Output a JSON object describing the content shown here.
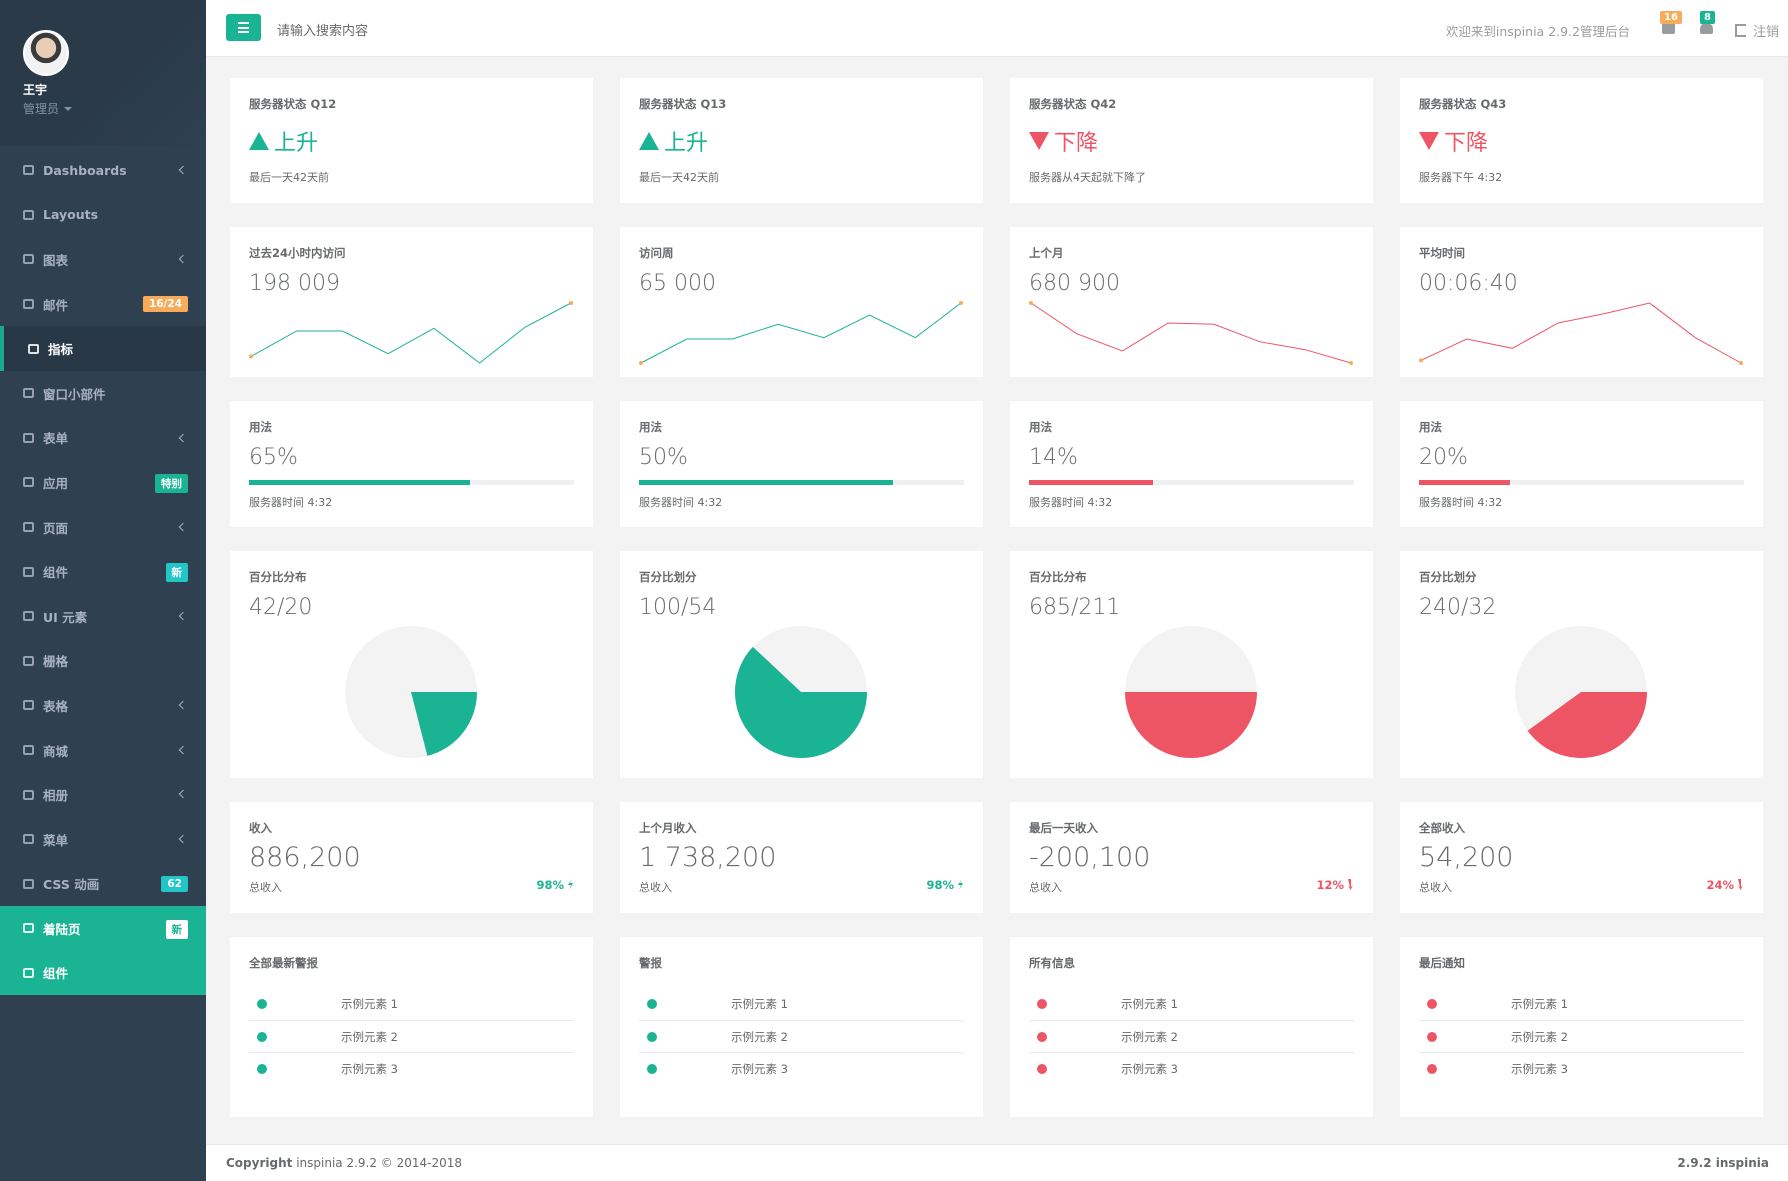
{
  "sidebar": {
    "user_name": "王宇",
    "role": "管理员",
    "menu": [
      {
        "label": "Dashboards",
        "arrow": true
      },
      {
        "label": "Layouts"
      },
      {
        "label": "图表",
        "arrow": true
      },
      {
        "label": "邮件",
        "badge": "16/24",
        "badge_color": "#f8ac59"
      },
      {
        "label": "指标",
        "state": "active"
      },
      {
        "label": "窗口小部件"
      },
      {
        "label": "表单",
        "arrow": true
      },
      {
        "label": "应用",
        "badge": "特别",
        "badge_color": "#1ab394"
      },
      {
        "label": "页面",
        "arrow": true
      },
      {
        "label": "组件",
        "badge": "新",
        "badge_color": "#23c6c8"
      },
      {
        "label": "UI 元素",
        "arrow": true
      },
      {
        "label": "栅格"
      },
      {
        "label": "表格",
        "arrow": true
      },
      {
        "label": "商城",
        "arrow": true
      },
      {
        "label": "相册",
        "arrow": true
      },
      {
        "label": "菜单",
        "arrow": true
      },
      {
        "label": "CSS 动画",
        "badge": "62",
        "badge_color": "#23c6c8"
      },
      {
        "label": "着陆页",
        "badge": "新",
        "badge_color": "#ffffff",
        "state": "highlight"
      },
      {
        "label": "组件",
        "state": "highlight"
      }
    ]
  },
  "topbar": {
    "search_placeholder": "请输入搜索内容",
    "welcome": "欢迎来到inspinia 2.9.2管理后台",
    "mail_count": 16,
    "alert_count": 8,
    "logout": "注销"
  },
  "status_cards": [
    {
      "title": "服务器状态 Q12",
      "trend": "上升",
      "direction": "up",
      "color": "#1ab394",
      "note": "最后一天42天前"
    },
    {
      "title": "服务器状态 Q13",
      "trend": "上升",
      "direction": "up",
      "color": "#1ab394",
      "note": "最后一天42天前"
    },
    {
      "title": "服务器状态 Q42",
      "trend": "下降",
      "direction": "down",
      "color": "#ed5565",
      "note": "服务器从4天起就下降了"
    },
    {
      "title": "服务器状态 Q43",
      "trend": "下降",
      "direction": "down",
      "color": "#ed5565",
      "note": "服务器下午 4:32"
    }
  ],
  "visit_cards": [
    {
      "title": "过去24小时内访问",
      "value": "198 009",
      "color": "#1ab394",
      "points": [
        12,
        31,
        31,
        14,
        33,
        7,
        34,
        52
      ]
    },
    {
      "title": "访问周",
      "value": "65 000",
      "color": "#1ab394",
      "points": [
        7,
        25,
        25,
        36,
        26,
        43,
        26,
        52
      ]
    },
    {
      "title": "上个月",
      "value": "680 900",
      "color": "#ed5565",
      "points": [
        52,
        29,
        16,
        37,
        36,
        23,
        17,
        7
      ]
    },
    {
      "title": "平均时间",
      "value": "00:06:40",
      "color": "#ed5565",
      "points": [
        9,
        25,
        18,
        37,
        44,
        52,
        26,
        7
      ]
    }
  ],
  "usage_cards": [
    {
      "title": "用法",
      "value": "65%",
      "progress": 68,
      "color": "#1ab394",
      "note": "服务器时间 4:32"
    },
    {
      "title": "用法",
      "value": "50%",
      "progress": 78,
      "color": "#1ab394",
      "note": "服务器时间 4:32"
    },
    {
      "title": "用法",
      "value": "14%",
      "progress": 38,
      "color": "#ed5565",
      "note": "服务器时间 4:32"
    },
    {
      "title": "用法",
      "value": "20%",
      "progress": 28,
      "color": "#ed5565",
      "note": "服务器时间 4:32"
    }
  ],
  "pie_cards": [
    {
      "title": "百分比分布",
      "value": "42/20",
      "share": 21,
      "color": "#1ab394"
    },
    {
      "title": "百分比划分",
      "value": "100/54",
      "share": 62,
      "color": "#1ab394"
    },
    {
      "title": "百分比分布",
      "value": "685/211",
      "share": 50,
      "color": "#ed5565"
    },
    {
      "title": "百分比划分",
      "value": "240/32",
      "share": 40,
      "color": "#ed5565"
    }
  ],
  "income_cards": [
    {
      "title": "收入",
      "value": "886,200",
      "sub": "总收入",
      "pct": "98%",
      "direction": "up",
      "color": "#1ab394"
    },
    {
      "title": "上个月收入",
      "value": "1 738,200",
      "sub": "总收入",
      "pct": "98%",
      "direction": "up",
      "color": "#1ab394"
    },
    {
      "title": "最后一天收入",
      "value": "-200,100",
      "sub": "总收入",
      "pct": "12%",
      "direction": "down",
      "color": "#ed5565"
    },
    {
      "title": "全部收入",
      "value": "54,200",
      "sub": "总收入",
      "pct": "24%",
      "direction": "down",
      "color": "#ed5565"
    }
  ],
  "list_cards": [
    {
      "title": "全部最新警报",
      "color": "#1ab394",
      "items": [
        "示例元素 1",
        "示例元素 2",
        "示例元素 3"
      ]
    },
    {
      "title": "警报",
      "color": "#1ab394",
      "items": [
        "示例元素 1",
        "示例元素 2",
        "示例元素 3"
      ]
    },
    {
      "title": "所有信息",
      "color": "#ed5565",
      "items": [
        "示例元素 1",
        "示例元素 2",
        "示例元素 3"
      ]
    },
    {
      "title": "最后通知",
      "color": "#ed5565",
      "items": [
        "示例元素 1",
        "示例元素 2",
        "示例元素 3"
      ]
    }
  ],
  "footer": {
    "copyright_label": "Copyright",
    "copyright_text": "inspinia 2.9.2 © 2014-2018",
    "version": "2.9.2 inspinia"
  }
}
